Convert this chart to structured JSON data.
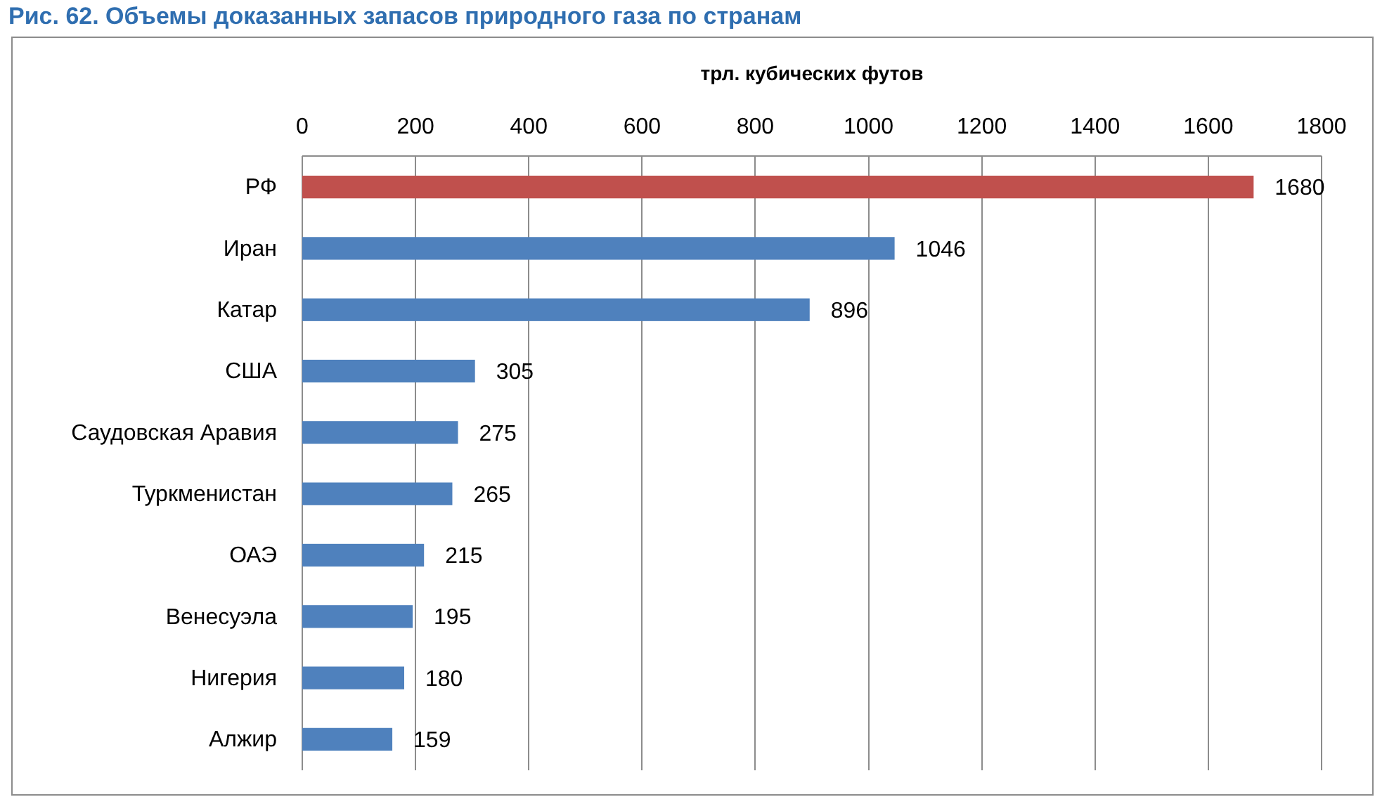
{
  "chart_data": {
    "type": "bar",
    "orientation": "horizontal",
    "title": "Рис. 62. Объемы доказанных запасов природного газа по странам",
    "xlabel": "трл. кубических футов",
    "categories": [
      "РФ",
      "Иран",
      "Катар",
      "США",
      "Саудовская Аравия",
      "Туркменистан",
      "ОАЭ",
      "Венесуэла",
      "Нигерия",
      "Алжир"
    ],
    "values": [
      1680,
      1046,
      896,
      305,
      275,
      265,
      215,
      195,
      180,
      159
    ],
    "colors": [
      "#c0504d",
      "#4f81bd",
      "#4f81bd",
      "#4f81bd",
      "#4f81bd",
      "#4f81bd",
      "#4f81bd",
      "#4f81bd",
      "#4f81bd",
      "#4f81bd"
    ],
    "xlim": [
      0,
      1800
    ],
    "xticks": [
      0,
      200,
      400,
      600,
      800,
      1000,
      1200,
      1400,
      1600,
      1800
    ],
    "grid": "x",
    "data_labels": true
  }
}
